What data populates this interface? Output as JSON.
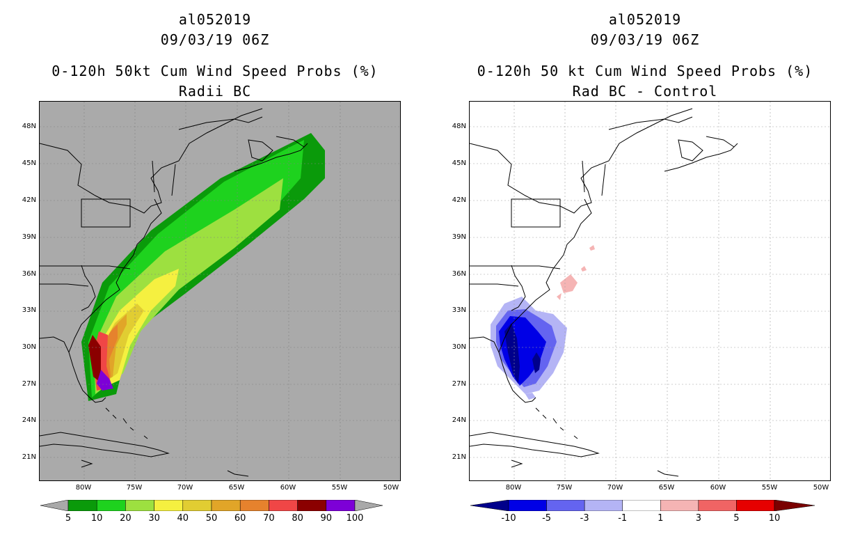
{
  "left": {
    "storm_id": "al052019",
    "datetime": "09/03/19 06Z",
    "title": "0-120h 50kt Cum Wind Speed Probs (%)",
    "subtitle": "Radii BC",
    "colorbar": {
      "labels": [
        "5",
        "10",
        "20",
        "30",
        "40",
        "50",
        "60",
        "70",
        "80",
        "90",
        "100"
      ],
      "colors": [
        "#0a9a0a",
        "#1ed21e",
        "#9de040",
        "#f5f040",
        "#e1cd32",
        "#e1a528",
        "#e6822d",
        "#f04646",
        "#8b0000",
        "#7d00d7"
      ],
      "end_color": "#a9a9a9"
    },
    "background_color": "#aaaaaa"
  },
  "right": {
    "storm_id": "al052019",
    "datetime": "09/03/19 06Z",
    "title": "0-120h 50 kt Cum Wind Speed Probs (%)",
    "subtitle": "Rad BC - Control",
    "colorbar": {
      "labels": [
        "-10",
        "-5",
        "-3",
        "-1",
        "1",
        "3",
        "5",
        "10"
      ],
      "colors": [
        "#0000e6",
        "#6464f0",
        "#b4b4f5",
        "#ffffff",
        "#f5b4b4",
        "#f06464",
        "#e60000"
      ],
      "end_left": "#00008b",
      "end_right": "#7a0000"
    },
    "background_color": "#ffffff"
  },
  "axes": {
    "lat_labels": [
      "48N",
      "45N",
      "42N",
      "39N",
      "36N",
      "33N",
      "30N",
      "27N",
      "24N",
      "21N"
    ],
    "lon_labels": [
      "80W",
      "75W",
      "70W",
      "65W",
      "60W",
      "55W",
      "50W"
    ]
  }
}
